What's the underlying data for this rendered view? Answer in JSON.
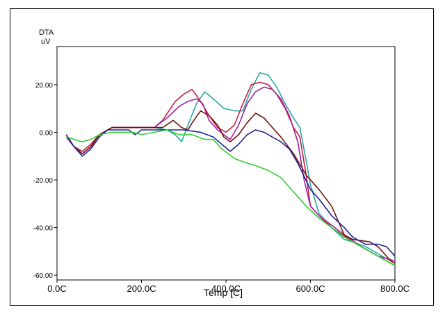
{
  "chart_data": {
    "type": "line",
    "title": "",
    "ylabel_line1": "DTA",
    "ylabel_line2": "uV",
    "xlabel": "Temp  [C]",
    "xlim": [
      0,
      800
    ],
    "ylim": [
      -62,
      36
    ],
    "xticks": [
      0,
      200,
      400,
      600,
      800
    ],
    "xtick_labels": [
      "0.0C",
      "200.0C",
      "400.0C",
      "600.0C",
      "800.0C"
    ],
    "yticks": [
      20,
      0,
      -20,
      -40,
      -60
    ],
    "ytick_labels": [
      "20.00",
      "0.00",
      "-20.00",
      "-40.00",
      "-60.00"
    ],
    "grid": false,
    "series": [
      {
        "color": "#2aa8a8",
        "points": [
          [
            22,
            -2
          ],
          [
            40,
            -6
          ],
          [
            60,
            -9
          ],
          [
            80,
            -6
          ],
          [
            100,
            -1
          ],
          [
            130,
            2
          ],
          [
            180,
            2
          ],
          [
            230,
            2
          ],
          [
            260,
            1
          ],
          [
            280,
            -1
          ],
          [
            295,
            -4
          ],
          [
            310,
            3
          ],
          [
            330,
            12
          ],
          [
            350,
            17
          ],
          [
            370,
            14
          ],
          [
            395,
            10
          ],
          [
            420,
            9
          ],
          [
            440,
            9
          ],
          [
            460,
            18
          ],
          [
            480,
            25
          ],
          [
            500,
            24
          ],
          [
            520,
            19
          ],
          [
            540,
            12
          ],
          [
            560,
            6
          ],
          [
            575,
            2
          ],
          [
            590,
            -12
          ],
          [
            600,
            -22
          ],
          [
            620,
            -34
          ],
          [
            650,
            -40
          ],
          [
            680,
            -45
          ],
          [
            700,
            -46
          ],
          [
            730,
            -48
          ],
          [
            760,
            -51
          ],
          [
            800,
            -55
          ]
        ]
      },
      {
        "color": "#c02040",
        "points": [
          [
            22,
            -1
          ],
          [
            40,
            -6
          ],
          [
            60,
            -8
          ],
          [
            80,
            -5
          ],
          [
            100,
            -1
          ],
          [
            130,
            2
          ],
          [
            180,
            2
          ],
          [
            230,
            2
          ],
          [
            250,
            5
          ],
          [
            280,
            13
          ],
          [
            300,
            16
          ],
          [
            320,
            18
          ],
          [
            340,
            13
          ],
          [
            360,
            7
          ],
          [
            380,
            2
          ],
          [
            400,
            0
          ],
          [
            420,
            3
          ],
          [
            440,
            12
          ],
          [
            460,
            20
          ],
          [
            480,
            21
          ],
          [
            500,
            20
          ],
          [
            520,
            16
          ],
          [
            540,
            10
          ],
          [
            560,
            2
          ],
          [
            575,
            -2
          ],
          [
            590,
            -18
          ],
          [
            600,
            -31
          ],
          [
            620,
            -35
          ],
          [
            650,
            -40
          ],
          [
            700,
            -46
          ],
          [
            740,
            -50
          ],
          [
            780,
            -54
          ],
          [
            800,
            -56
          ]
        ]
      },
      {
        "color": "#a020a0",
        "points": [
          [
            22,
            -2
          ],
          [
            40,
            -6
          ],
          [
            60,
            -9
          ],
          [
            80,
            -6
          ],
          [
            100,
            -1
          ],
          [
            130,
            2
          ],
          [
            180,
            2
          ],
          [
            230,
            2
          ],
          [
            260,
            6
          ],
          [
            290,
            11
          ],
          [
            310,
            13
          ],
          [
            330,
            14
          ],
          [
            345,
            12
          ],
          [
            360,
            5
          ],
          [
            380,
            1
          ],
          [
            395,
            -1
          ],
          [
            410,
            -3
          ],
          [
            430,
            3
          ],
          [
            450,
            12
          ],
          [
            470,
            17
          ],
          [
            490,
            19
          ],
          [
            510,
            18
          ],
          [
            530,
            14
          ],
          [
            550,
            7
          ],
          [
            570,
            -4
          ],
          [
            585,
            -20
          ],
          [
            600,
            -31
          ],
          [
            620,
            -35
          ],
          [
            650,
            -39
          ],
          [
            680,
            -43
          ],
          [
            720,
            -48
          ],
          [
            760,
            -52
          ],
          [
            800,
            -54
          ]
        ]
      },
      {
        "color": "#701010",
        "points": [
          [
            22,
            -1
          ],
          [
            40,
            -6
          ],
          [
            60,
            -9
          ],
          [
            80,
            -6
          ],
          [
            100,
            -1
          ],
          [
            130,
            2
          ],
          [
            180,
            2
          ],
          [
            230,
            2
          ],
          [
            250,
            2
          ],
          [
            275,
            5
          ],
          [
            295,
            2
          ],
          [
            310,
            1
          ],
          [
            320,
            4
          ],
          [
            340,
            9
          ],
          [
            360,
            7
          ],
          [
            380,
            3
          ],
          [
            395,
            -2
          ],
          [
            410,
            -4
          ],
          [
            430,
            -1
          ],
          [
            450,
            4
          ],
          [
            470,
            8
          ],
          [
            490,
            6
          ],
          [
            510,
            2
          ],
          [
            530,
            -2
          ],
          [
            560,
            -9
          ],
          [
            590,
            -18
          ],
          [
            620,
            -24
          ],
          [
            650,
            -31
          ],
          [
            680,
            -43
          ],
          [
            700,
            -45
          ],
          [
            740,
            -46
          ],
          [
            760,
            -48
          ],
          [
            790,
            -54
          ],
          [
            800,
            -55
          ]
        ]
      },
      {
        "color": "#202090",
        "points": [
          [
            22,
            -1
          ],
          [
            40,
            -6
          ],
          [
            60,
            -10
          ],
          [
            80,
            -7
          ],
          [
            100,
            -2
          ],
          [
            120,
            1
          ],
          [
            150,
            1
          ],
          [
            170,
            1
          ],
          [
            185,
            -1
          ],
          [
            200,
            1
          ],
          [
            230,
            1
          ],
          [
            260,
            1
          ],
          [
            300,
            1
          ],
          [
            340,
            0
          ],
          [
            370,
            -2
          ],
          [
            390,
            -5
          ],
          [
            410,
            -8
          ],
          [
            430,
            -5
          ],
          [
            450,
            -1
          ],
          [
            470,
            1
          ],
          [
            490,
            0
          ],
          [
            510,
            -2
          ],
          [
            530,
            -4
          ],
          [
            550,
            -7
          ],
          [
            570,
            -13
          ],
          [
            600,
            -24
          ],
          [
            620,
            -28
          ],
          [
            650,
            -35
          ],
          [
            680,
            -40
          ],
          [
            700,
            -44
          ],
          [
            730,
            -47
          ],
          [
            760,
            -47
          ],
          [
            780,
            -48
          ],
          [
            800,
            -52
          ]
        ]
      },
      {
        "color": "#30d030",
        "points": [
          [
            22,
            -2
          ],
          [
            40,
            -3
          ],
          [
            60,
            -4
          ],
          [
            80,
            -3
          ],
          [
            100,
            -1
          ],
          [
            130,
            0
          ],
          [
            160,
            0
          ],
          [
            180,
            0
          ],
          [
            200,
            -1
          ],
          [
            230,
            0
          ],
          [
            260,
            1
          ],
          [
            290,
            -1
          ],
          [
            320,
            -1
          ],
          [
            350,
            -3
          ],
          [
            370,
            -3
          ],
          [
            390,
            -7
          ],
          [
            420,
            -11
          ],
          [
            450,
            -13
          ],
          [
            470,
            -14
          ],
          [
            500,
            -16
          ],
          [
            530,
            -19
          ],
          [
            560,
            -25
          ],
          [
            590,
            -31
          ],
          [
            620,
            -36
          ],
          [
            650,
            -40
          ],
          [
            680,
            -44
          ],
          [
            700,
            -46
          ],
          [
            740,
            -50
          ],
          [
            780,
            -54
          ],
          [
            800,
            -56
          ]
        ]
      }
    ]
  }
}
